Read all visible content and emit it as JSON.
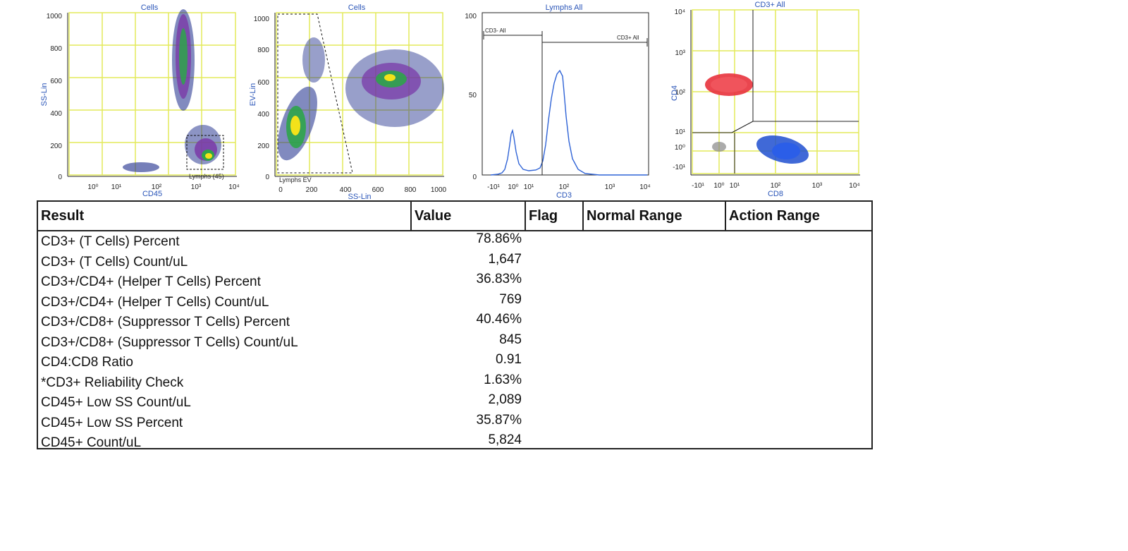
{
  "plots": [
    {
      "title": "Cells",
      "xlabel": "CD45",
      "ylabel": "SS-Lin",
      "xticks": [
        "10⁰",
        "10¹",
        "10²",
        "10³",
        "10⁴"
      ],
      "yticks": [
        "0",
        "200",
        "400",
        "600",
        "800",
        "1000"
      ],
      "gate_label": "Lymphs (45)"
    },
    {
      "title": "Cells",
      "xlabel": "SS-Lin",
      "ylabel": "EV-Lin",
      "xticks": [
        "0",
        "200",
        "400",
        "600",
        "800",
        "1000"
      ],
      "yticks": [
        "0",
        "200",
        "400",
        "600",
        "800",
        "1000"
      ],
      "gate_label": "Lymphs EV"
    },
    {
      "title": "Lymphs All",
      "xlabel": "CD3",
      "ylabel": "",
      "xticks": [
        "-10¹",
        "10⁰",
        "10¹",
        "10²",
        "10³",
        "10⁴"
      ],
      "yticks": [
        "0",
        "50",
        "100"
      ],
      "gate_left": "CD3- All",
      "gate_right": "CD3+ All"
    },
    {
      "title": "CD3+ All",
      "xlabel": "CD8",
      "ylabel": "CD4",
      "xticks": [
        "-10¹",
        "10⁰",
        "10¹",
        "10²",
        "10³",
        "10⁴"
      ],
      "yticks": [
        "-10¹",
        "10⁰",
        "10¹",
        "10²",
        "10³",
        "10⁴"
      ]
    }
  ],
  "colors": {
    "grid": "#e3ea5a",
    "axis_text": "#2a55b8",
    "cd4_population": "#e8323c",
    "cd8_population": "#1f4fd0",
    "density_low": "#1a2a8a",
    "density_mid": "#7a3aa8",
    "density_high": "#2ea44a",
    "density_peak": "#f3e21a",
    "histogram": "#2f63d6"
  },
  "table": {
    "headers": {
      "result": "Result",
      "value": "Value",
      "flag": "Flag",
      "normal_range": "Normal Range",
      "action_range": "Action Range"
    },
    "rows": [
      {
        "name": "CD3+ (T Cells) Percent",
        "value": "78.86%"
      },
      {
        "name": "CD3+ (T Cells) Count/uL",
        "value": "1,647"
      },
      {
        "name": "CD3+/CD4+ (Helper T Cells) Percent",
        "value": "36.83%"
      },
      {
        "name": "CD3+/CD4+ (Helper T Cells) Count/uL",
        "value": "769"
      },
      {
        "name": "CD3+/CD8+ (Suppressor T Cells) Percent",
        "value": "40.46%"
      },
      {
        "name": "CD3+/CD8+ (Suppressor T Cells) Count/uL",
        "value": "845"
      },
      {
        "name": "CD4:CD8 Ratio",
        "value": "0.91"
      },
      {
        "name": "*CD3+ Reliability Check",
        "value": "1.63%"
      },
      {
        "name": "CD45+ Low SS Count/uL",
        "value": "2,089"
      },
      {
        "name": "CD45+ Low SS Percent",
        "value": "35.87%"
      },
      {
        "name": "CD45+ Count/uL",
        "value": "5,824"
      }
    ]
  }
}
